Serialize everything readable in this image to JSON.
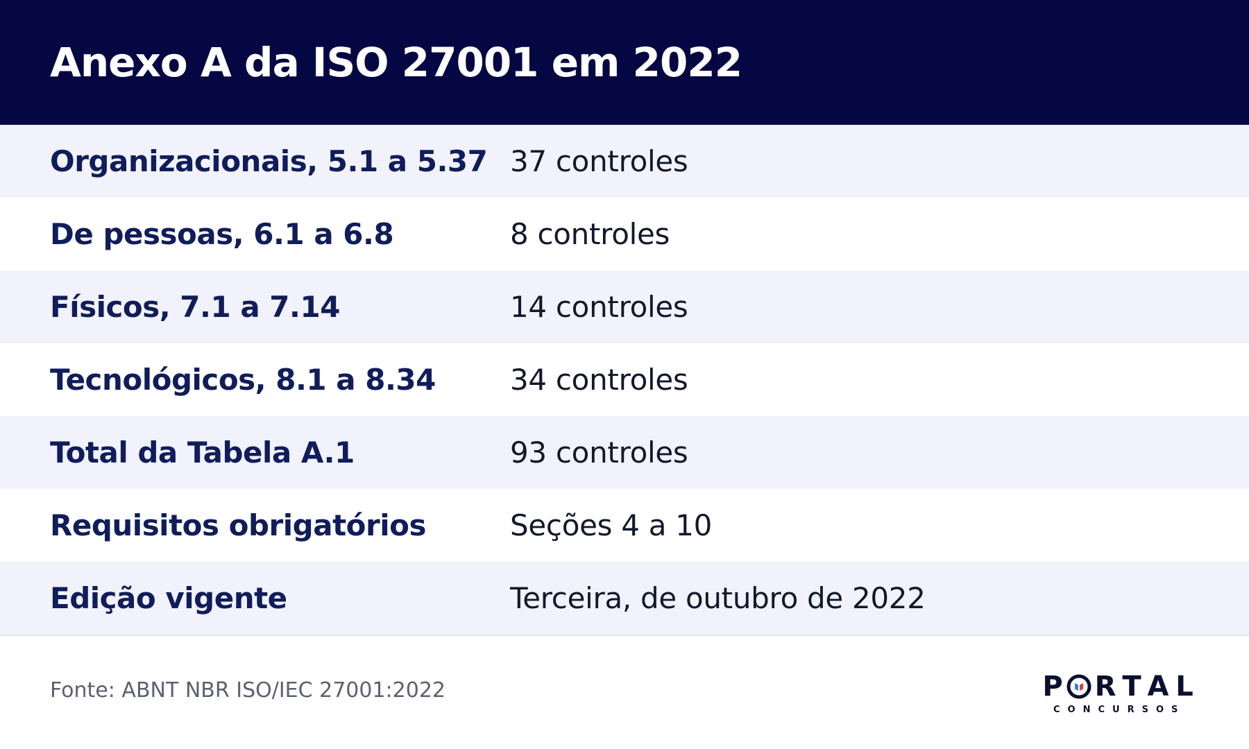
{
  "header": {
    "title": "Anexo A da ISO 27001 em 2022"
  },
  "table": {
    "rows": [
      {
        "label": "Organizacionais, 5.1 a 5.37",
        "value": "37 controles"
      },
      {
        "label": "De pessoas, 6.1 a 6.8",
        "value": "8 controles"
      },
      {
        "label": "Físicos, 7.1 a 7.14",
        "value": "14 controles"
      },
      {
        "label": "Tecnológicos, 8.1 a 8.34",
        "value": "34 controles"
      },
      {
        "label": "Total da Tabela A.1",
        "value": "93 controles"
      },
      {
        "label": "Requisitos obrigatórios",
        "value": "Seções 4 a 10"
      },
      {
        "label": "Edição vigente",
        "value": "Terceira, de outubro de 2022"
      }
    ]
  },
  "footer": {
    "source": "Fonte: ABNT NBR ISO/IEC 27001:2022",
    "logo": {
      "main_p": "P",
      "main_rest": [
        "R",
        "T",
        "A",
        "L"
      ],
      "sub": "CONCURSOS"
    }
  },
  "colors": {
    "header_bg": "#050743",
    "label_text": "#101d5a",
    "row_alt_bg": "#f1f2fb",
    "logo_red": "#e53935",
    "logo_blue": "#1e88e5"
  }
}
